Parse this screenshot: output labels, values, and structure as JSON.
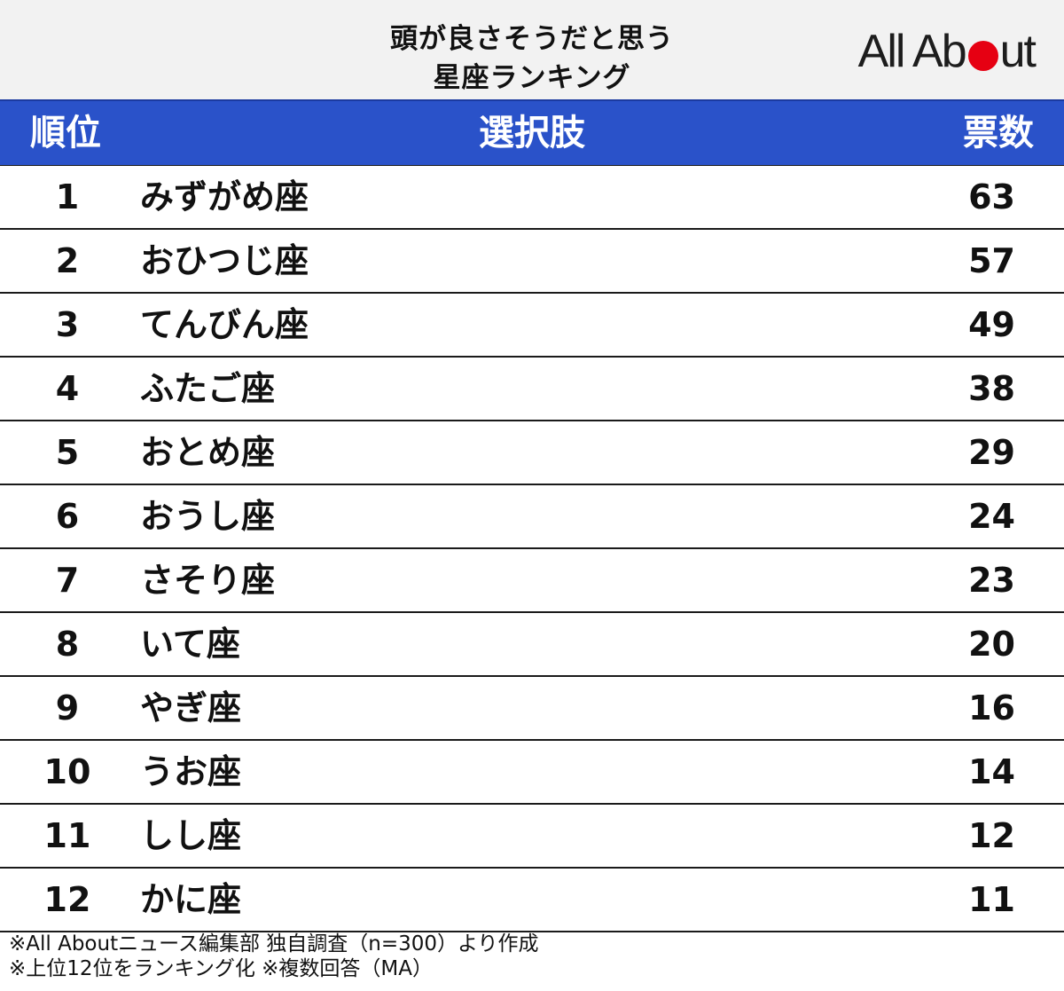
{
  "chart_data": {
    "type": "table",
    "title_lines": [
      "頭が良さそうだと思う",
      "星座ランキング"
    ],
    "columns": [
      "順位",
      "選択肢",
      "票数"
    ],
    "rows": [
      {
        "rank": "1",
        "name": "みずがめ座",
        "votes": "63"
      },
      {
        "rank": "2",
        "name": "おひつじ座",
        "votes": "57"
      },
      {
        "rank": "3",
        "name": "てんびん座",
        "votes": "49"
      },
      {
        "rank": "4",
        "name": "ふたご座",
        "votes": "38"
      },
      {
        "rank": "5",
        "name": "おとめ座",
        "votes": "29"
      },
      {
        "rank": "6",
        "name": "おうし座",
        "votes": "24"
      },
      {
        "rank": "7",
        "name": "さそり座",
        "votes": "23"
      },
      {
        "rank": "8",
        "name": "いて座",
        "votes": "20"
      },
      {
        "rank": "9",
        "name": "やぎ座",
        "votes": "16"
      },
      {
        "rank": "10",
        "name": "うお座",
        "votes": "14"
      },
      {
        "rank": "11",
        "name": "しし座",
        "votes": "12"
      },
      {
        "rank": "12",
        "name": "かに座",
        "votes": "11"
      }
    ]
  },
  "logo": {
    "text_before": "All Ab",
    "text_after": "ut",
    "dot_color": "#e60012"
  },
  "colors": {
    "header_bg": "#2a52c9",
    "title_bg": "#f2f2f2"
  },
  "footer": {
    "line1": "※All Aboutニュース編集部 独自調査（n=300）より作成",
    "line2": "※上位12位をランキング化 ※複数回答（MA）"
  }
}
